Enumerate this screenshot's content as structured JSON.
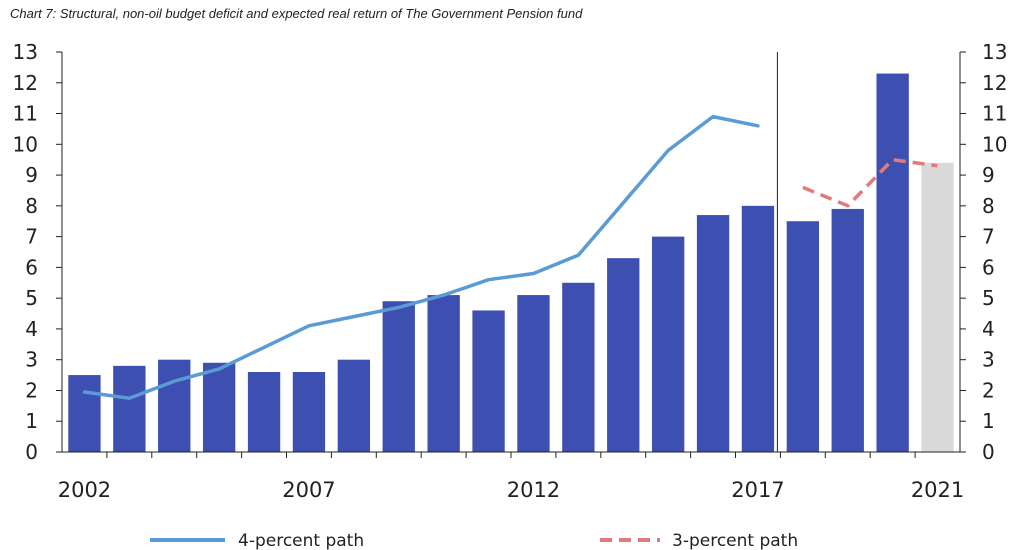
{
  "chart_data": {
    "type": "bar",
    "title": "Chart 7: Structural, non-oil budget deficit and expected real return of The Government Pension fund",
    "categories": [
      "2002",
      "2003",
      "2004",
      "2005",
      "2006",
      "2007",
      "2008",
      "2009",
      "2010",
      "2011",
      "2012",
      "2013",
      "2014",
      "2015",
      "2016",
      "2017",
      "2018",
      "2019",
      "2020",
      "2021"
    ],
    "x_tick_labels": [
      "2002",
      "2007",
      "2012",
      "2017",
      "2021"
    ],
    "ylim": [
      0,
      13
    ],
    "y_ticks": [
      "0",
      "1",
      "2",
      "3",
      "4",
      "5",
      "6",
      "7",
      "8",
      "9",
      "10",
      "11",
      "12",
      "13"
    ],
    "bars": {
      "values": [
        2.5,
        2.8,
        3.0,
        2.9,
        2.6,
        2.6,
        3.0,
        4.9,
        5.1,
        4.6,
        5.1,
        5.5,
        6.3,
        7.0,
        7.7,
        8.0,
        7.5,
        7.9,
        12.3,
        9.4
      ],
      "color": "#3d4fb0",
      "projection_color": "#d9d9d9",
      "projection_from": "2021"
    },
    "series": [
      {
        "name": "4-percent path",
        "style": "solid",
        "color": "#5b9bd5",
        "x": [
          "2002",
          "2003",
          "2004",
          "2005",
          "2006",
          "2007",
          "2008",
          "2009",
          "2010",
          "2011",
          "2012",
          "2013",
          "2014",
          "2015",
          "2016",
          "2017"
        ],
        "values": [
          1.95,
          1.75,
          2.3,
          2.7,
          3.4,
          4.1,
          4.4,
          4.7,
          5.1,
          5.6,
          5.8,
          6.4,
          8.1,
          9.8,
          10.9,
          10.6
        ]
      },
      {
        "name": "3-percent path",
        "style": "dashed",
        "color": "#e07b7b",
        "x": [
          "2018",
          "2019",
          "2020",
          "2021"
        ],
        "values": [
          8.6,
          8.0,
          9.5,
          9.3
        ]
      }
    ],
    "divider_after": "2017",
    "grid": false,
    "legend_position": "bottom"
  }
}
